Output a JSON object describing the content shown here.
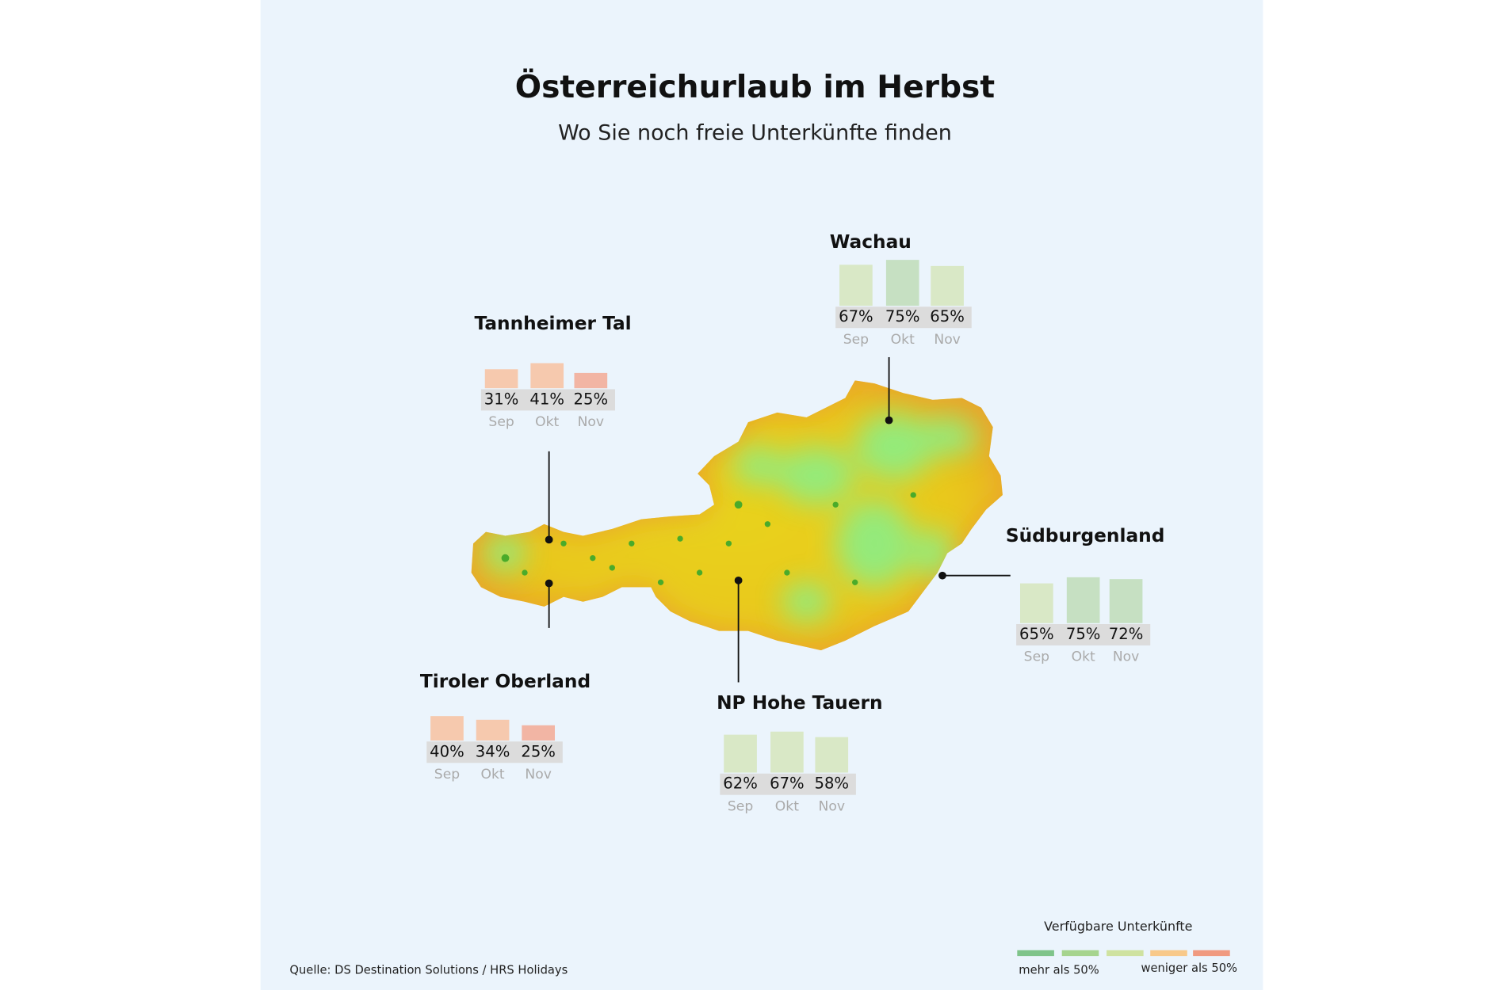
{
  "header": {
    "title": "Österreichurlaub im Herbst",
    "subtitle": "Wo Sie noch freie Unterkünfte finden"
  },
  "chart_data": [
    {
      "type": "bar",
      "title": "Tannheimer Tal",
      "categories": [
        "Sep",
        "Okt",
        "Nov"
      ],
      "values": [
        31,
        41,
        25
      ],
      "value_labels": [
        "31%",
        "41%",
        "25%"
      ],
      "colors": [
        "#f6c9ae",
        "#f6c9ae",
        "#f2b5a4"
      ]
    },
    {
      "type": "bar",
      "title": "Wachau",
      "categories": [
        "Sep",
        "Okt",
        "Nov"
      ],
      "values": [
        67,
        75,
        65
      ],
      "value_labels": [
        "67%",
        "75%",
        "65%"
      ],
      "colors": [
        "#d9e8c6",
        "#c6e0c2",
        "#d9e8c6"
      ]
    },
    {
      "type": "bar",
      "title": "Südburgenland",
      "categories": [
        "Sep",
        "Okt",
        "Nov"
      ],
      "values": [
        65,
        75,
        72
      ],
      "value_labels": [
        "65%",
        "75%",
        "72%"
      ],
      "colors": [
        "#d9e8c6",
        "#c6e0c2",
        "#c6e0c2"
      ]
    },
    {
      "type": "bar",
      "title": "Tiroler Oberland",
      "categories": [
        "Sep",
        "Okt",
        "Nov"
      ],
      "values": [
        40,
        34,
        25
      ],
      "value_labels": [
        "40%",
        "34%",
        "25%"
      ],
      "colors": [
        "#f6c9ae",
        "#f6c9ae",
        "#f2b5a4"
      ]
    },
    {
      "type": "bar",
      "title": "NP Hohe Tauern",
      "categories": [
        "Sep",
        "Okt",
        "Nov"
      ],
      "values": [
        62,
        67,
        58
      ],
      "value_labels": [
        "62%",
        "67%",
        "58%"
      ],
      "colors": [
        "#d9e8c6",
        "#d9e8c6",
        "#d9e8c6"
      ]
    }
  ],
  "legend": {
    "title": "Verfügbare Unterkünfte",
    "colors": [
      "#7fc48a",
      "#a6d48e",
      "#cfe2a0",
      "#f8c98a",
      "#f09a80"
    ],
    "low_label": "mehr als 50%",
    "high_label": "weniger als 50%"
  },
  "source": "Quelle: DS Destination Solutions / HRS Holidays"
}
